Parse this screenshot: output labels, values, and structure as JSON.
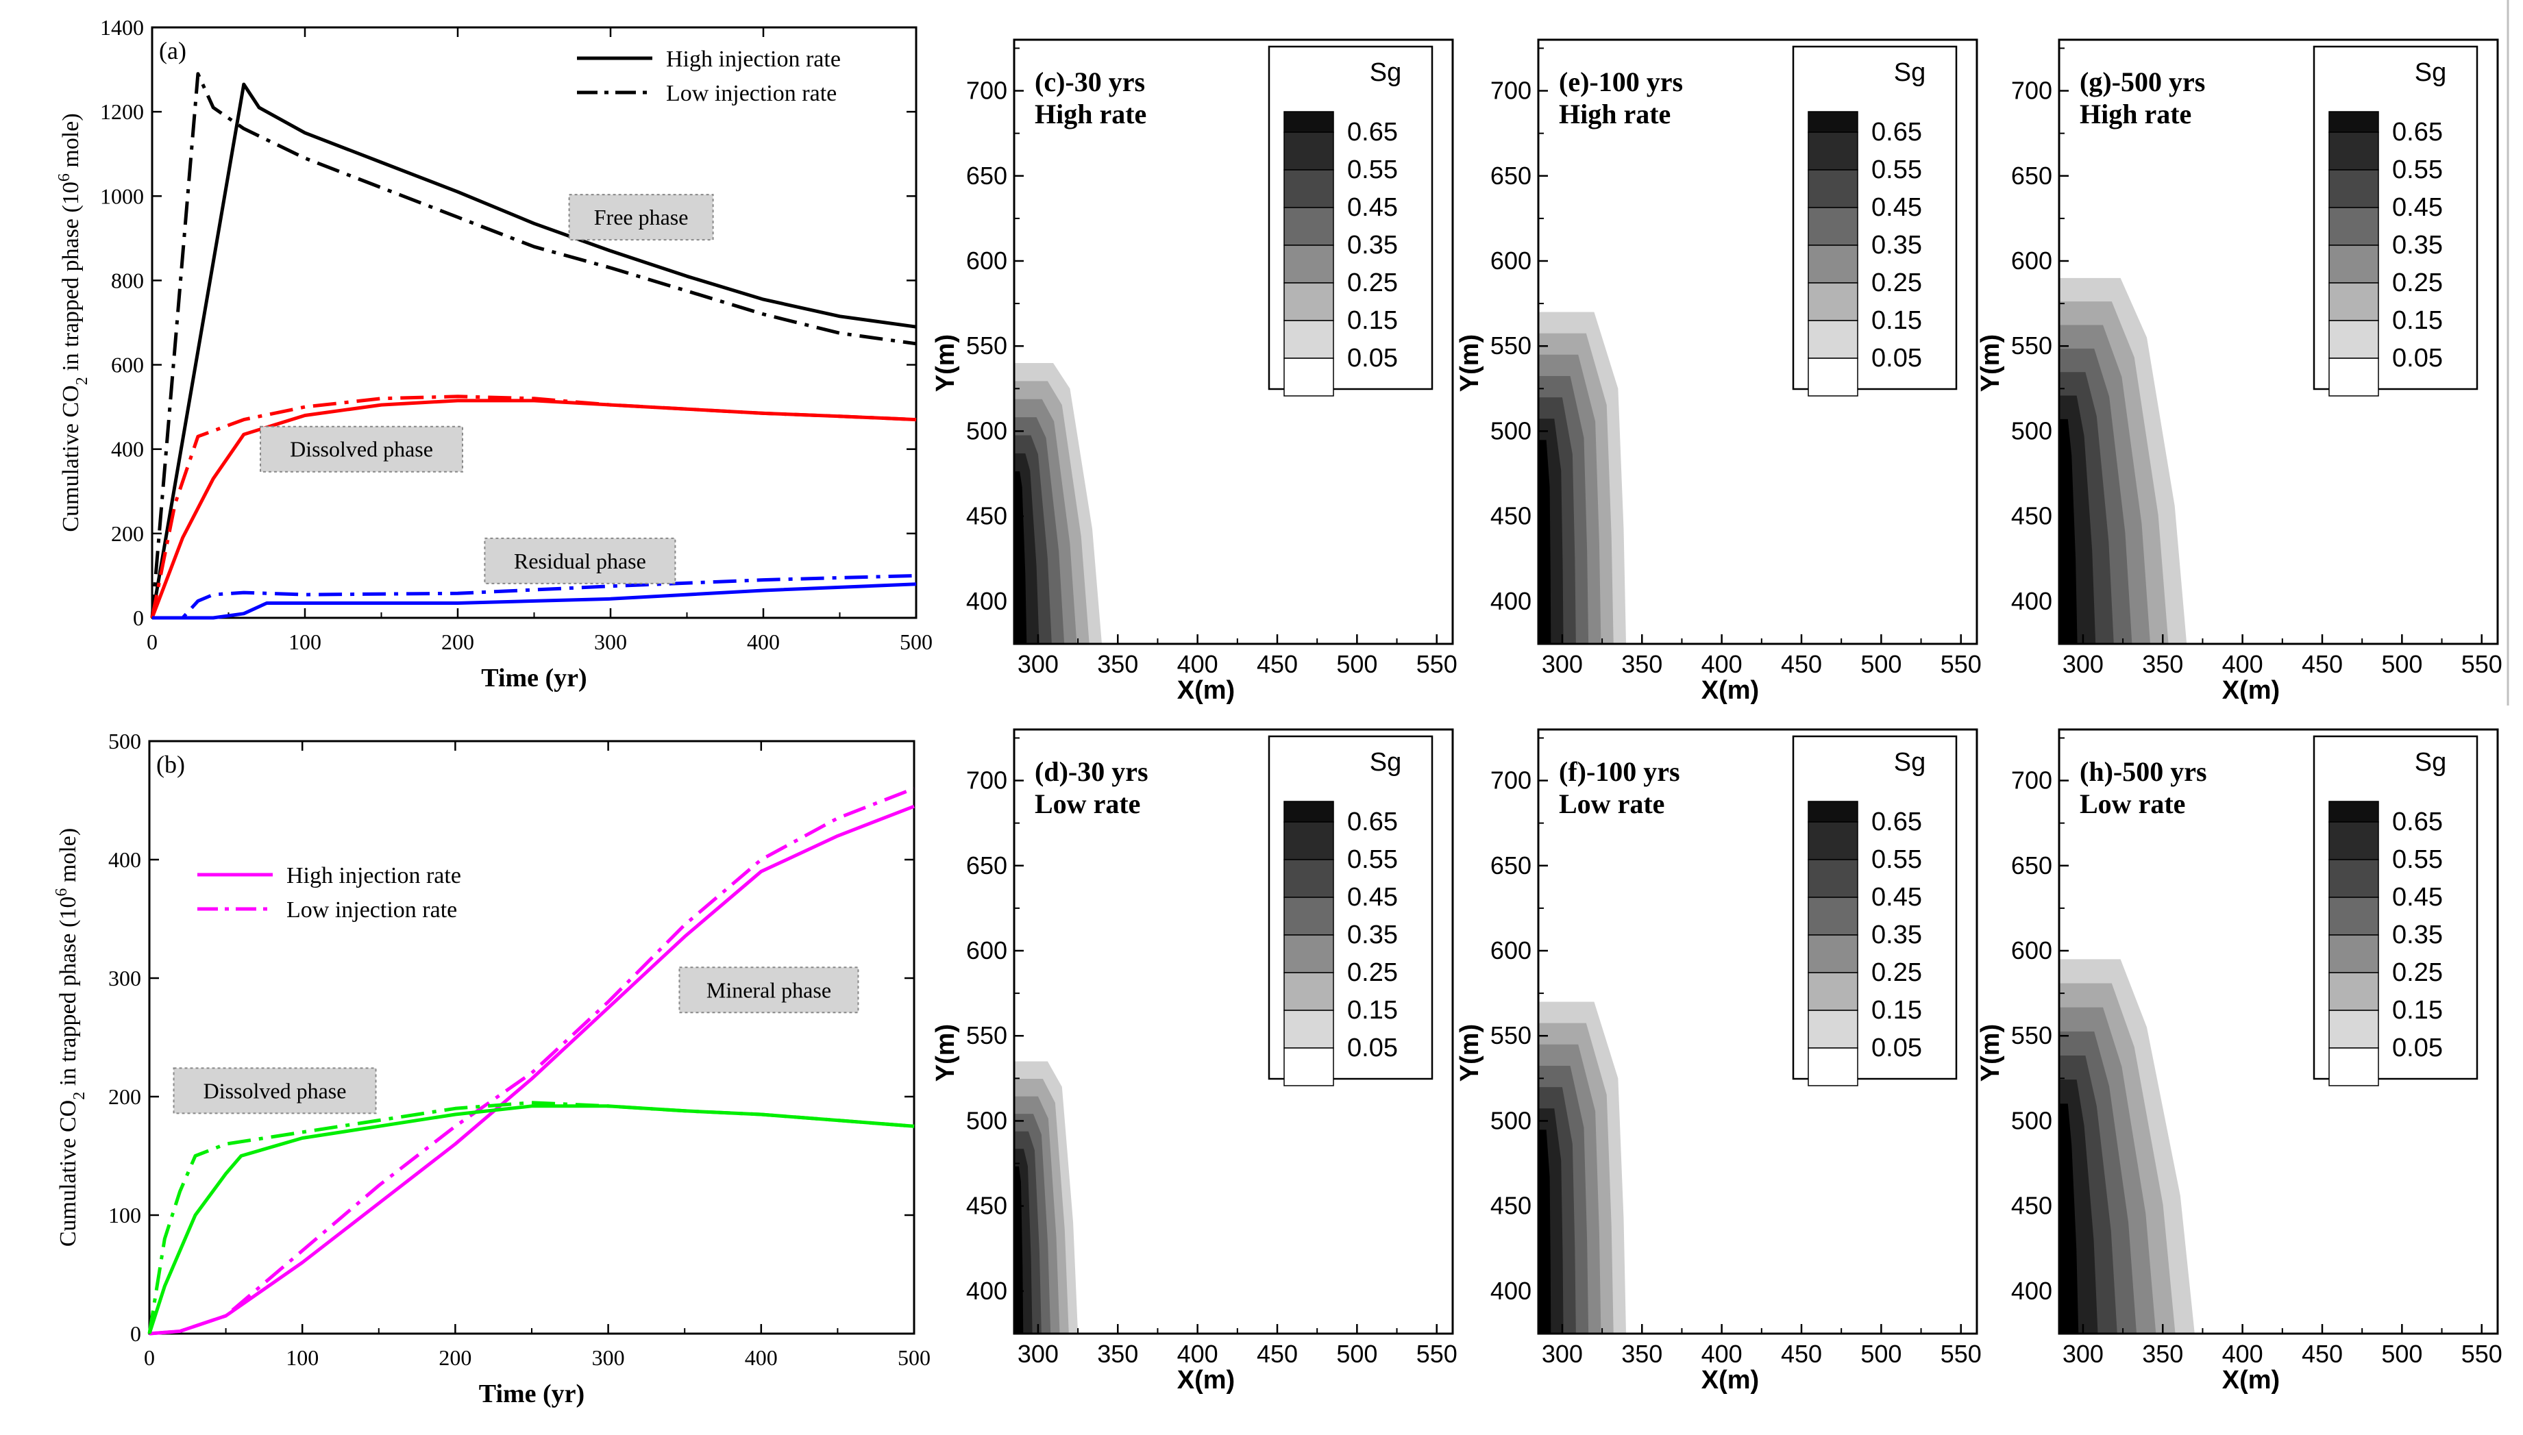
{
  "chart_data": [
    {
      "id": "a",
      "type": "line",
      "panel_label": "(a)",
      "xlabel": "Time (yr)",
      "ylabel": "Cumulative CO2 in trapped phase (10^6 mole)",
      "ylabel_parts": {
        "pre": "Cumulative CO",
        "sub": "2",
        "mid": " in trapped phase (10",
        "sup": "6",
        "post": " mole)"
      },
      "xlim": [
        0,
        500
      ],
      "ylim": [
        0,
        1400
      ],
      "xticks": [
        0,
        100,
        200,
        300,
        400,
        500
      ],
      "yticks": [
        0,
        200,
        400,
        600,
        800,
        1000,
        1200,
        1400
      ],
      "legend": [
        {
          "label": "High injection rate",
          "style": "solid"
        },
        {
          "label": "Low injection rate",
          "style": "dashdot"
        }
      ],
      "annotations": [
        {
          "text": "Free phase",
          "x": 320,
          "y": 950
        },
        {
          "text": "Dissolved phase",
          "x": 137,
          "y": 400
        },
        {
          "text": "Residual phase",
          "x": 280,
          "y": 135
        }
      ],
      "series": [
        {
          "name": "Free phase - High injection rate",
          "color": "#000000",
          "style": "solid",
          "x": [
            0,
            60,
            70,
            100,
            150,
            200,
            250,
            300,
            350,
            400,
            450,
            500
          ],
          "y": [
            0,
            1265,
            1210,
            1150,
            1080,
            1010,
            935,
            870,
            810,
            755,
            715,
            690
          ]
        },
        {
          "name": "Free phase - Low injection rate",
          "color": "#000000",
          "style": "dashdot",
          "x": [
            0,
            30,
            40,
            60,
            100,
            150,
            200,
            250,
            300,
            350,
            400,
            450,
            500
          ],
          "y": [
            0,
            1290,
            1210,
            1160,
            1090,
            1020,
            950,
            880,
            830,
            775,
            720,
            675,
            650
          ]
        },
        {
          "name": "Dissolved phase - High injection rate",
          "color": "#ff0000",
          "style": "solid",
          "x": [
            0,
            20,
            40,
            60,
            100,
            150,
            200,
            250,
            300,
            350,
            400,
            450,
            500
          ],
          "y": [
            0,
            190,
            330,
            435,
            480,
            505,
            515,
            515,
            505,
            495,
            485,
            478,
            470
          ]
        },
        {
          "name": "Dissolved phase - Low injection rate",
          "color": "#ff0000",
          "style": "dashdot",
          "x": [
            0,
            15,
            30,
            60,
            100,
            150,
            200,
            250,
            300,
            350,
            400,
            450,
            500
          ],
          "y": [
            0,
            270,
            430,
            470,
            500,
            520,
            525,
            520,
            505,
            495,
            485,
            478,
            470
          ]
        },
        {
          "name": "Residual phase - High injection rate",
          "color": "#0000ff",
          "style": "solid",
          "x": [
            0,
            40,
            60,
            75,
            100,
            200,
            300,
            400,
            500
          ],
          "y": [
            0,
            0,
            10,
            35,
            35,
            35,
            45,
            65,
            80
          ]
        },
        {
          "name": "Residual phase - Low injection rate",
          "color": "#0000ff",
          "style": "dashdot",
          "x": [
            0,
            20,
            30,
            40,
            60,
            100,
            200,
            300,
            400,
            500
          ],
          "y": [
            0,
            0,
            40,
            55,
            60,
            55,
            58,
            75,
            90,
            100
          ]
        }
      ]
    },
    {
      "id": "b",
      "type": "line",
      "panel_label": "(b)",
      "xlabel": "Time (yr)",
      "ylabel": "Cumulative CO2 in trapped phase (10^6 mole)",
      "ylabel_parts": {
        "pre": "Cumulative CO",
        "sub": "2",
        "mid": " in trapped phase (10",
        "sup": "6",
        "post": " mole)"
      },
      "xlim": [
        0,
        500
      ],
      "ylim": [
        0,
        500
      ],
      "xticks": [
        0,
        100,
        200,
        300,
        400,
        500
      ],
      "yticks": [
        0,
        100,
        200,
        300,
        400,
        500
      ],
      "legend": [
        {
          "label": "High injection rate",
          "style": "solid"
        },
        {
          "label": "Low injection rate",
          "style": "dashdot"
        }
      ],
      "annotations": [
        {
          "text": "Mineral phase",
          "x": 405,
          "y": 290
        },
        {
          "text": "Dissolved phase",
          "x": 82,
          "y": 205
        }
      ],
      "series": [
        {
          "name": "Mineral phase - High injection rate",
          "color": "#ff00ff",
          "style": "solid",
          "x": [
            0,
            20,
            50,
            100,
            150,
            200,
            250,
            300,
            350,
            400,
            450,
            500
          ],
          "y": [
            0,
            2,
            15,
            60,
            110,
            160,
            215,
            275,
            335,
            390,
            420,
            445
          ]
        },
        {
          "name": "Mineral phase - Low injection rate",
          "color": "#ff00ff",
          "style": "dashdot",
          "x": [
            0,
            20,
            50,
            100,
            150,
            200,
            250,
            300,
            350,
            400,
            450,
            500
          ],
          "y": [
            0,
            2,
            15,
            70,
            125,
            175,
            220,
            280,
            345,
            400,
            435,
            460
          ]
        },
        {
          "name": "Dissolved phase - High injection rate",
          "color": "#00ee00",
          "style": "solid",
          "x": [
            0,
            10,
            30,
            50,
            60,
            100,
            150,
            200,
            250,
            300,
            350,
            400,
            450,
            500
          ],
          "y": [
            0,
            40,
            100,
            135,
            150,
            165,
            175,
            185,
            192,
            192,
            188,
            185,
            180,
            175
          ]
        },
        {
          "name": "Dissolved phase - Low injection rate",
          "color": "#00ee00",
          "style": "dashdot",
          "x": [
            0,
            10,
            20,
            30,
            50,
            100,
            150,
            200,
            250,
            300,
            350,
            400,
            450,
            500
          ],
          "y": [
            0,
            80,
            120,
            150,
            160,
            170,
            180,
            190,
            195,
            192,
            188,
            185,
            180,
            175
          ]
        }
      ]
    },
    {
      "id": "c",
      "type": "contour",
      "title_line1": "(c)-30 yrs",
      "title_line2": "High rate",
      "xlabel": "X(m)",
      "ylabel": "Y(m)",
      "xlim": [
        285,
        560
      ],
      "ylim": [
        375,
        730
      ],
      "xticks": [
        300,
        350,
        400,
        450,
        500,
        550
      ],
      "yticks": [
        400,
        450,
        500,
        550,
        600,
        650,
        700
      ],
      "legend_title": "Sg",
      "levels": [
        0.65,
        0.55,
        0.45,
        0.35,
        0.25,
        0.15,
        0.05
      ],
      "plume": {
        "x_bottom": 340,
        "x_shoulder": 320,
        "y_shoulder": 525,
        "y_top": 540
      }
    },
    {
      "id": "e",
      "type": "contour",
      "title_line1": "(e)-100 yrs",
      "title_line2": "High rate",
      "xlabel": "X(m)",
      "ylabel": "Y(m)",
      "xlim": [
        285,
        560
      ],
      "ylim": [
        375,
        730
      ],
      "xticks": [
        300,
        350,
        400,
        450,
        500,
        550
      ],
      "yticks": [
        400,
        450,
        500,
        550,
        600,
        650,
        700
      ],
      "legend_title": "Sg",
      "levels": [
        0.65,
        0.55,
        0.45,
        0.35,
        0.25,
        0.15,
        0.05
      ],
      "plume": {
        "x_bottom": 340,
        "x_shoulder": 335,
        "y_shoulder": 525,
        "y_top": 570
      }
    },
    {
      "id": "g",
      "type": "contour",
      "title_line1": "(g)-500 yrs",
      "title_line2": "High rate",
      "xlabel": "X(m)",
      "ylabel": "Y(m)",
      "xlim": [
        285,
        560
      ],
      "ylim": [
        375,
        730
      ],
      "xticks": [
        300,
        350,
        400,
        450,
        500,
        550
      ],
      "yticks": [
        400,
        450,
        500,
        550,
        600,
        650,
        700
      ],
      "legend_title": "Sg",
      "levels": [
        0.65,
        0.55,
        0.45,
        0.35,
        0.25,
        0.15,
        0.05
      ],
      "plume": {
        "x_bottom": 365,
        "x_shoulder": 340,
        "y_shoulder": 555,
        "y_top": 590
      }
    },
    {
      "id": "d",
      "type": "contour",
      "title_line1": "(d)-30 yrs",
      "title_line2": "Low rate",
      "xlabel": "X(m)",
      "ylabel": "Y(m)",
      "xlim": [
        285,
        560
      ],
      "ylim": [
        375,
        730
      ],
      "xticks": [
        300,
        350,
        400,
        450,
        500,
        550
      ],
      "yticks": [
        400,
        450,
        500,
        550,
        600,
        650,
        700
      ],
      "legend_title": "Sg",
      "levels": [
        0.65,
        0.55,
        0.45,
        0.35,
        0.25,
        0.15,
        0.05
      ],
      "plume": {
        "x_bottom": 325,
        "x_shoulder": 315,
        "y_shoulder": 520,
        "y_top": 535
      }
    },
    {
      "id": "f",
      "type": "contour",
      "title_line1": "(f)-100 yrs",
      "title_line2": "Low rate",
      "xlabel": "X(m)",
      "ylabel": "Y(m)",
      "xlim": [
        285,
        560
      ],
      "ylim": [
        375,
        730
      ],
      "xticks": [
        300,
        350,
        400,
        450,
        500,
        550
      ],
      "yticks": [
        400,
        450,
        500,
        550,
        600,
        650,
        700
      ],
      "legend_title": "Sg",
      "levels": [
        0.65,
        0.55,
        0.45,
        0.35,
        0.25,
        0.15,
        0.05
      ],
      "plume": {
        "x_bottom": 340,
        "x_shoulder": 335,
        "y_shoulder": 525,
        "y_top": 570
      }
    },
    {
      "id": "h",
      "type": "contour",
      "title_line1": "(h)-500 yrs",
      "title_line2": "Low rate",
      "xlabel": "X(m)",
      "ylabel": "Y(m)",
      "xlim": [
        285,
        560
      ],
      "ylim": [
        375,
        730
      ],
      "xticks": [
        300,
        350,
        400,
        450,
        500,
        550
      ],
      "yticks": [
        400,
        450,
        500,
        550,
        600,
        650,
        700
      ],
      "legend_title": "Sg",
      "levels": [
        0.65,
        0.55,
        0.45,
        0.35,
        0.25,
        0.15,
        0.05
      ],
      "plume": {
        "x_bottom": 370,
        "x_shoulder": 340,
        "y_shoulder": 555,
        "y_top": 595
      }
    }
  ],
  "level_colors": [
    "#000000",
    "#222222",
    "#444444",
    "#666666",
    "#888888",
    "#aaaaaa",
    "#d0d0d0",
    "#ffffff"
  ],
  "legend_colors": [
    "#101010",
    "#2a2a2a",
    "#484848",
    "#6a6a6a",
    "#8c8c8c",
    "#b4b4b4",
    "#d8d8d8",
    "#ffffff"
  ]
}
